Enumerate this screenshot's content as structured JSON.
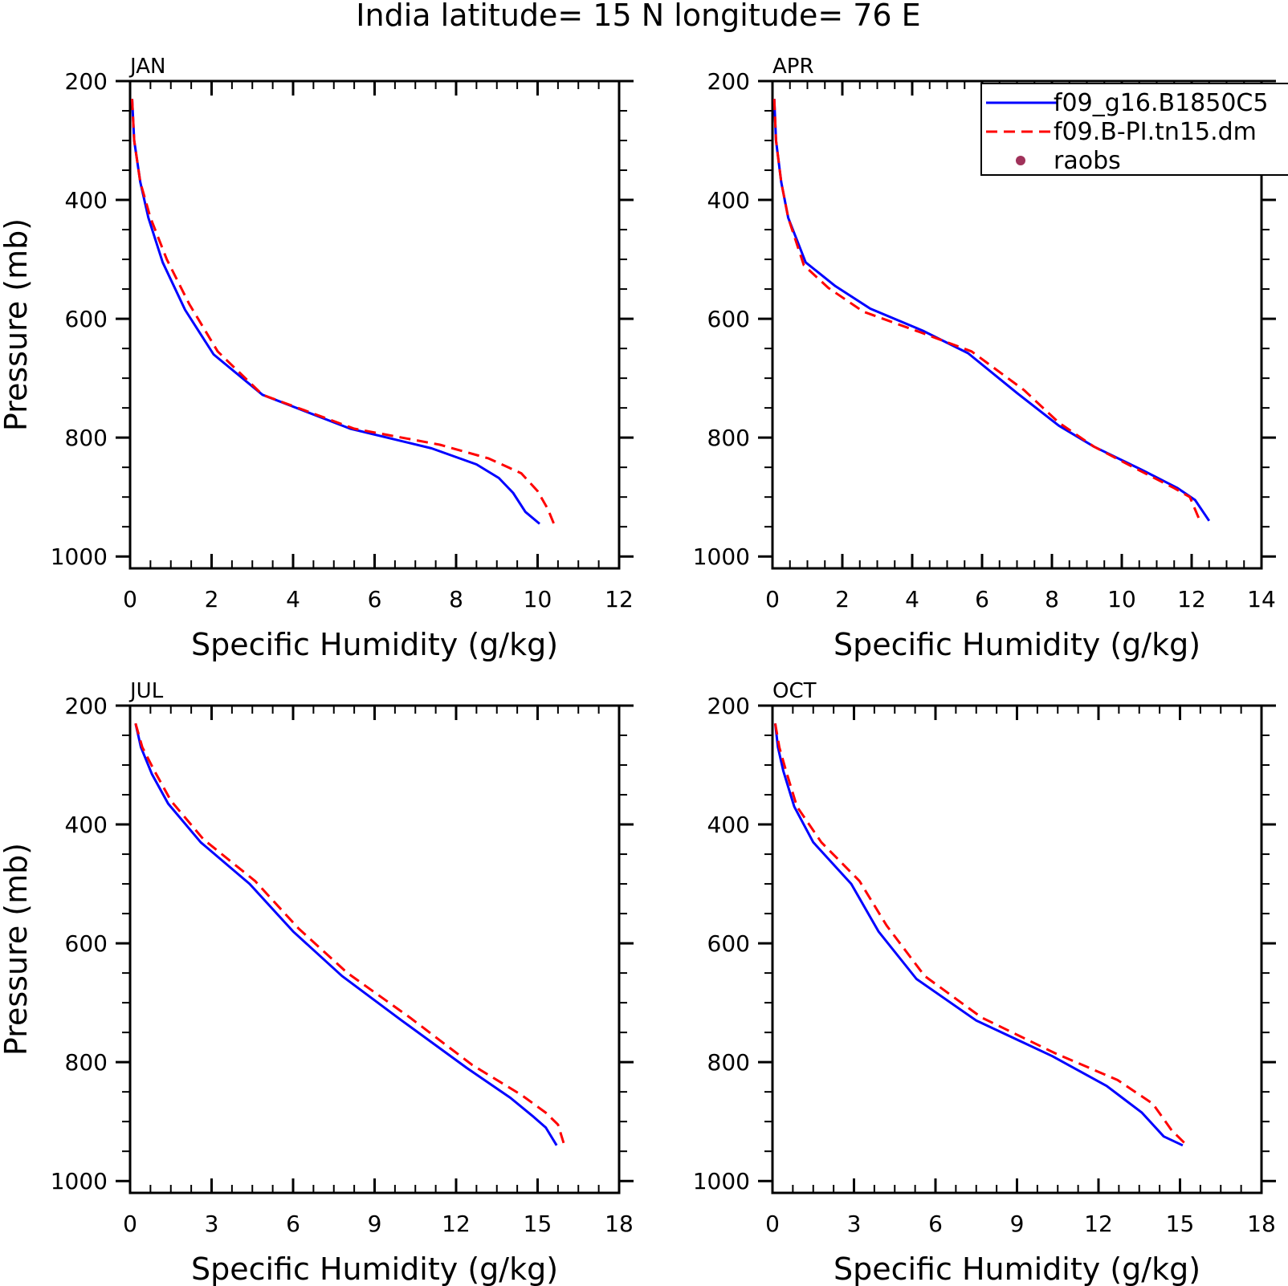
{
  "title": "India  latitude= 15 N longitude= 76 E",
  "colors": {
    "series_1": "#0000ff",
    "series_2": "#ff0000",
    "raobs": "#a0325a",
    "axes": "#000000",
    "background": "#ffffff"
  },
  "legend": {
    "placement": "top-right of APR panel (clipped at figure edge)",
    "entries": [
      {
        "label": "f09_g16.B1850C5",
        "style": "solid",
        "color": "#0000ff"
      },
      {
        "label": "f09.B-PI.tn15.dm",
        "style": "dashed",
        "color": "#ff0000"
      },
      {
        "label": "raobs",
        "style": "marker",
        "color": "#a0325a"
      }
    ]
  },
  "chart_data": [
    {
      "type": "line",
      "panel_title": "JAN",
      "xlabel": "Specific Humidity (g/kg)",
      "ylabel": "Pressure (mb)",
      "xlim": [
        0,
        12
      ],
      "xticks": [
        "0",
        "2",
        "4",
        "6",
        "8",
        "10",
        "12"
      ],
      "ylim": [
        1020,
        200
      ],
      "yticks": [
        "200",
        "400",
        "600",
        "800",
        "1000"
      ],
      "y_reversed": true,
      "grid": false,
      "series": [
        {
          "name": "f09_g16.B1850C5",
          "style": "solid",
          "x": [
            0.05,
            0.1,
            0.25,
            0.45,
            0.8,
            1.35,
            2.05,
            3.25,
            5.4,
            7.4,
            8.5,
            9.05,
            9.4,
            9.7,
            10.05
          ],
          "y": [
            230,
            300,
            370,
            430,
            505,
            585,
            660,
            728,
            785,
            818,
            845,
            868,
            893,
            925,
            945
          ]
        },
        {
          "name": "f09.B-PI.tn15.dm",
          "style": "dashed",
          "x": [
            0.05,
            0.1,
            0.25,
            0.5,
            0.9,
            1.45,
            2.15,
            3.25,
            5.5,
            7.6,
            8.8,
            9.6,
            10.0,
            10.25,
            10.4
          ],
          "y": [
            230,
            300,
            370,
            430,
            500,
            575,
            655,
            728,
            785,
            812,
            835,
            860,
            890,
            920,
            945
          ]
        }
      ]
    },
    {
      "type": "line",
      "panel_title": "APR",
      "xlabel": "Specific Humidity (g/kg)",
      "ylabel": "",
      "xlim": [
        0,
        14
      ],
      "xticks": [
        "0",
        "2",
        "4",
        "6",
        "8",
        "10",
        "12",
        "14"
      ],
      "ylim": [
        1020,
        200
      ],
      "yticks": [
        "200",
        "400",
        "600",
        "800",
        "1000"
      ],
      "y_reversed": true,
      "grid": false,
      "series": [
        {
          "name": "f09_g16.B1850C5",
          "style": "solid",
          "x": [
            0.05,
            0.1,
            0.25,
            0.45,
            0.95,
            1.8,
            2.8,
            4.3,
            5.6,
            7.0,
            8.2,
            9.2,
            10.6,
            11.6,
            12.1,
            12.5
          ],
          "y": [
            230,
            300,
            370,
            430,
            505,
            545,
            583,
            620,
            658,
            725,
            780,
            815,
            855,
            885,
            905,
            940
          ]
        },
        {
          "name": "f09.B-PI.tn15.dm",
          "style": "dashed",
          "x": [
            0.05,
            0.1,
            0.25,
            0.45,
            0.9,
            1.6,
            2.6,
            4.2,
            5.7,
            7.2,
            8.2,
            9.2,
            10.5,
            11.5,
            11.95,
            12.25
          ],
          "y": [
            230,
            300,
            370,
            430,
            510,
            548,
            588,
            622,
            655,
            720,
            775,
            815,
            855,
            885,
            900,
            942
          ]
        }
      ]
    },
    {
      "type": "line",
      "panel_title": "JUL",
      "xlabel": "Specific Humidity (g/kg)",
      "ylabel": "Pressure (mb)",
      "xlim": [
        0,
        18
      ],
      "xticks": [
        "0",
        "3",
        "6",
        "9",
        "12",
        "15",
        "18"
      ],
      "ylim": [
        1020,
        200
      ],
      "yticks": [
        "200",
        "400",
        "600",
        "800",
        "1000"
      ],
      "y_reversed": true,
      "grid": false,
      "series": [
        {
          "name": "f09_g16.B1850C5",
          "style": "solid",
          "x": [
            0.2,
            0.4,
            0.8,
            1.4,
            2.6,
            4.4,
            6.0,
            7.8,
            10.0,
            12.4,
            14.0,
            14.8,
            15.3,
            15.7
          ],
          "y": [
            230,
            270,
            315,
            365,
            430,
            500,
            580,
            655,
            730,
            810,
            860,
            890,
            910,
            940
          ]
        },
        {
          "name": "f09.B-PI.tn15.dm",
          "style": "dashed",
          "x": [
            0.2,
            0.45,
            0.9,
            1.5,
            2.7,
            4.6,
            6.2,
            8.0,
            10.3,
            12.6,
            14.4,
            15.3,
            15.75,
            16.0
          ],
          "y": [
            230,
            270,
            310,
            360,
            425,
            495,
            575,
            650,
            725,
            805,
            855,
            885,
            905,
            942
          ]
        }
      ]
    },
    {
      "type": "line",
      "panel_title": "OCT",
      "xlabel": "Specific Humidity (g/kg)",
      "ylabel": "",
      "xlim": [
        0,
        18
      ],
      "xticks": [
        "0",
        "3",
        "6",
        "9",
        "12",
        "15",
        "18"
      ],
      "ylim": [
        1020,
        200
      ],
      "yticks": [
        "200",
        "400",
        "600",
        "800",
        "1000"
      ],
      "y_reversed": true,
      "grid": false,
      "series": [
        {
          "name": "f09_g16.B1850C5",
          "style": "solid",
          "x": [
            0.1,
            0.2,
            0.4,
            0.8,
            1.5,
            2.9,
            3.9,
            5.3,
            7.5,
            10.3,
            12.3,
            13.6,
            14.4,
            15.1
          ],
          "y": [
            230,
            270,
            310,
            370,
            430,
            500,
            580,
            660,
            730,
            790,
            840,
            885,
            925,
            940
          ]
        },
        {
          "name": "f09.B-PI.tn15.dm",
          "style": "dashed",
          "x": [
            0.1,
            0.25,
            0.5,
            0.9,
            1.8,
            3.2,
            4.2,
            5.6,
            7.7,
            10.4,
            12.7,
            14.0,
            14.7,
            15.3
          ],
          "y": [
            230,
            270,
            310,
            370,
            430,
            495,
            570,
            655,
            725,
            785,
            830,
            870,
            915,
            942
          ]
        }
      ]
    }
  ]
}
